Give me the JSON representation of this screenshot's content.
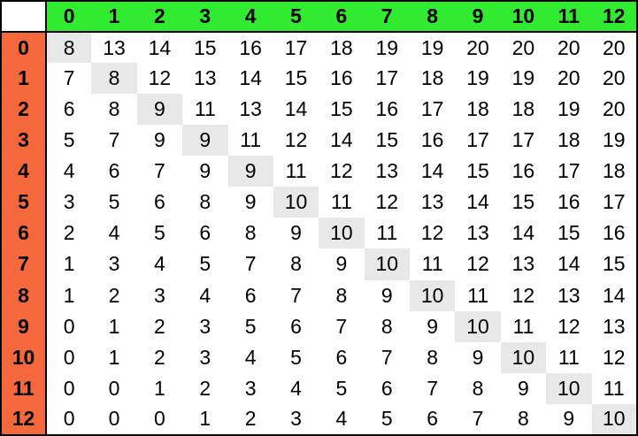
{
  "colors": {
    "header_row_bg": "#31EB31",
    "header_col_bg": "#F4683C",
    "diagonal_highlight_bg": "#E8E8E8",
    "corner_bg": "#FFFFFF",
    "cell_bg": "#FFFFFF",
    "border": "#000000",
    "text": "#000000"
  },
  "chart_data": {
    "type": "table",
    "title": "",
    "corner_label": "",
    "col_headers": [
      "0",
      "1",
      "2",
      "3",
      "4",
      "5",
      "6",
      "7",
      "8",
      "9",
      "10",
      "11",
      "12"
    ],
    "row_headers": [
      "0",
      "1",
      "2",
      "3",
      "4",
      "5",
      "6",
      "7",
      "8",
      "9",
      "10",
      "11",
      "12"
    ],
    "matrix": [
      [
        8,
        13,
        14,
        15,
        16,
        17,
        18,
        19,
        19,
        20,
        20,
        20,
        20
      ],
      [
        7,
        8,
        12,
        13,
        14,
        15,
        16,
        17,
        18,
        19,
        19,
        20,
        20
      ],
      [
        6,
        8,
        9,
        11,
        13,
        14,
        15,
        16,
        17,
        18,
        18,
        19,
        20
      ],
      [
        5,
        7,
        9,
        9,
        11,
        12,
        14,
        15,
        16,
        17,
        17,
        18,
        19
      ],
      [
        4,
        6,
        7,
        9,
        9,
        11,
        12,
        13,
        14,
        15,
        16,
        17,
        18
      ],
      [
        3,
        5,
        6,
        8,
        9,
        10,
        11,
        12,
        13,
        14,
        15,
        16,
        17
      ],
      [
        2,
        4,
        5,
        6,
        8,
        9,
        10,
        11,
        12,
        13,
        14,
        15,
        16
      ],
      [
        1,
        3,
        4,
        5,
        7,
        8,
        9,
        10,
        11,
        12,
        13,
        14,
        15
      ],
      [
        1,
        2,
        3,
        4,
        6,
        7,
        8,
        9,
        10,
        11,
        12,
        13,
        14
      ],
      [
        0,
        1,
        2,
        3,
        5,
        6,
        7,
        8,
        9,
        10,
        11,
        12,
        13
      ],
      [
        0,
        1,
        2,
        3,
        4,
        5,
        6,
        7,
        8,
        9,
        10,
        11,
        12
      ],
      [
        0,
        0,
        1,
        2,
        3,
        4,
        5,
        6,
        7,
        8,
        9,
        10,
        11
      ],
      [
        0,
        0,
        0,
        1,
        2,
        3,
        4,
        5,
        6,
        7,
        8,
        9,
        10
      ]
    ],
    "highlighted_cells": "main diagonal where row index equals column index",
    "layout": {
      "header_row_position": "top",
      "header_col_position": "left",
      "grid_lines": "outer border plus separators under header row and right of header column only"
    }
  }
}
